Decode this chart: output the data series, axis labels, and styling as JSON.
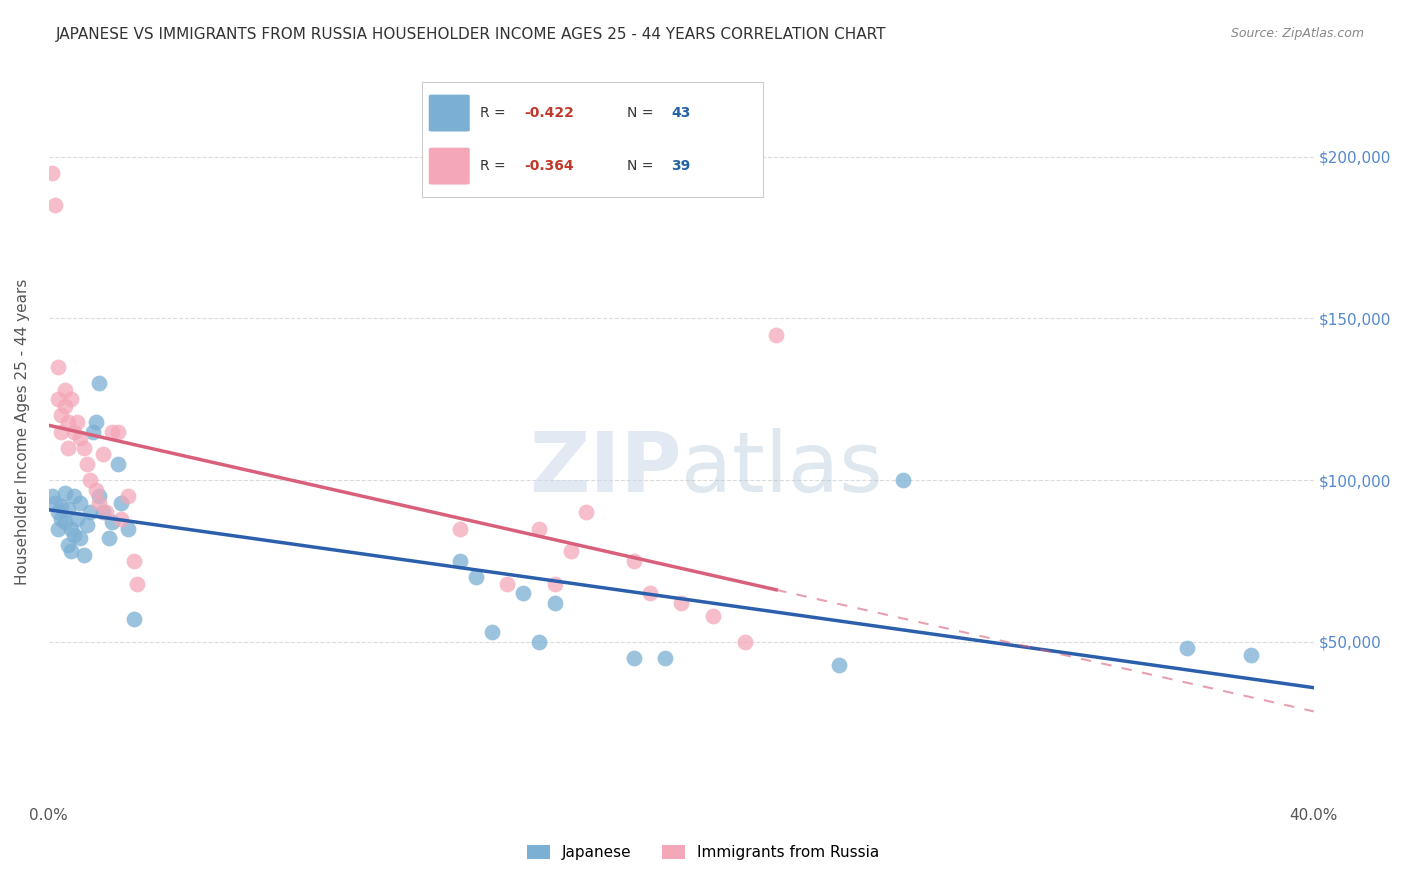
{
  "title": "JAPANESE VS IMMIGRANTS FROM RUSSIA HOUSEHOLDER INCOME AGES 25 - 44 YEARS CORRELATION CHART",
  "source": "Source: ZipAtlas.com",
  "ylabel": "Householder Income Ages 25 - 44 years",
  "xlim": [
    0,
    0.4
  ],
  "ylim": [
    0,
    230000
  ],
  "blue_color": "#7bafd4",
  "pink_color": "#f4a7b9",
  "blue_line_color": "#2b5fac",
  "pink_line_color": "#d9607a",
  "japanese_x": [
    0.001,
    0.002,
    0.003,
    0.003,
    0.004,
    0.004,
    0.005,
    0.005,
    0.006,
    0.006,
    0.007,
    0.007,
    0.008,
    0.008,
    0.009,
    0.01,
    0.01,
    0.011,
    0.012,
    0.013,
    0.014,
    0.015,
    0.016,
    0.016,
    0.017,
    0.019,
    0.02,
    0.022,
    0.023,
    0.025,
    0.027,
    0.13,
    0.135,
    0.14,
    0.15,
    0.155,
    0.16,
    0.185,
    0.195,
    0.25,
    0.27,
    0.36,
    0.38
  ],
  "japanese_y": [
    95000,
    93000,
    90000,
    85000,
    92000,
    88000,
    87000,
    96000,
    80000,
    91000,
    85000,
    78000,
    83000,
    95000,
    88000,
    93000,
    82000,
    77000,
    86000,
    90000,
    115000,
    118000,
    95000,
    130000,
    90000,
    82000,
    87000,
    105000,
    93000,
    85000,
    57000,
    75000,
    70000,
    53000,
    65000,
    50000,
    62000,
    45000,
    45000,
    43000,
    100000,
    48000,
    46000
  ],
  "russia_x": [
    0.001,
    0.002,
    0.003,
    0.003,
    0.004,
    0.004,
    0.005,
    0.005,
    0.006,
    0.006,
    0.007,
    0.008,
    0.009,
    0.01,
    0.011,
    0.012,
    0.013,
    0.015,
    0.016,
    0.017,
    0.018,
    0.02,
    0.022,
    0.023,
    0.025,
    0.027,
    0.028,
    0.13,
    0.145,
    0.155,
    0.16,
    0.165,
    0.17,
    0.185,
    0.19,
    0.2,
    0.21,
    0.22,
    0.23
  ],
  "russia_y": [
    195000,
    185000,
    135000,
    125000,
    120000,
    115000,
    128000,
    123000,
    118000,
    110000,
    125000,
    115000,
    118000,
    113000,
    110000,
    105000,
    100000,
    97000,
    93000,
    108000,
    90000,
    115000,
    115000,
    88000,
    95000,
    75000,
    68000,
    85000,
    68000,
    85000,
    68000,
    78000,
    90000,
    75000,
    65000,
    62000,
    58000,
    50000,
    145000
  ]
}
